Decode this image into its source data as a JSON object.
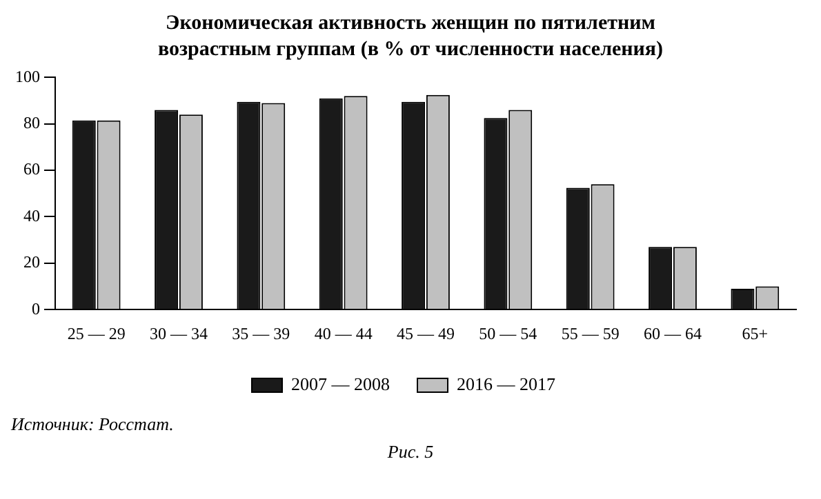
{
  "chart_data": {
    "type": "bar",
    "title": "Экономическая активность женщин по пятилетним возрастным группам (в % от численности населения)",
    "categories": [
      "25 — 29",
      "30 — 34",
      "35 — 39",
      "40 — 44",
      "45 — 49",
      "50 — 54",
      "55 — 59",
      "60 — 64",
      "65+"
    ],
    "series": [
      {
        "name": "2007 — 2008",
        "color": "#1a1a1a",
        "values": [
          81.5,
          86,
          89.5,
          91,
          89.5,
          82.5,
          52.5,
          27,
          9
        ]
      },
      {
        "name": "2016 — 2017",
        "color": "#c0c0c0",
        "values": [
          81.5,
          84,
          89,
          92,
          92.5,
          86,
          54,
          27,
          10
        ]
      }
    ],
    "ylim": [
      0,
      100
    ],
    "yticks": [
      0,
      20,
      40,
      60,
      80,
      100
    ],
    "grid": false,
    "legend": "bottom",
    "annotations": [
      "Источник: Росстат.",
      "Рис. 5"
    ]
  }
}
